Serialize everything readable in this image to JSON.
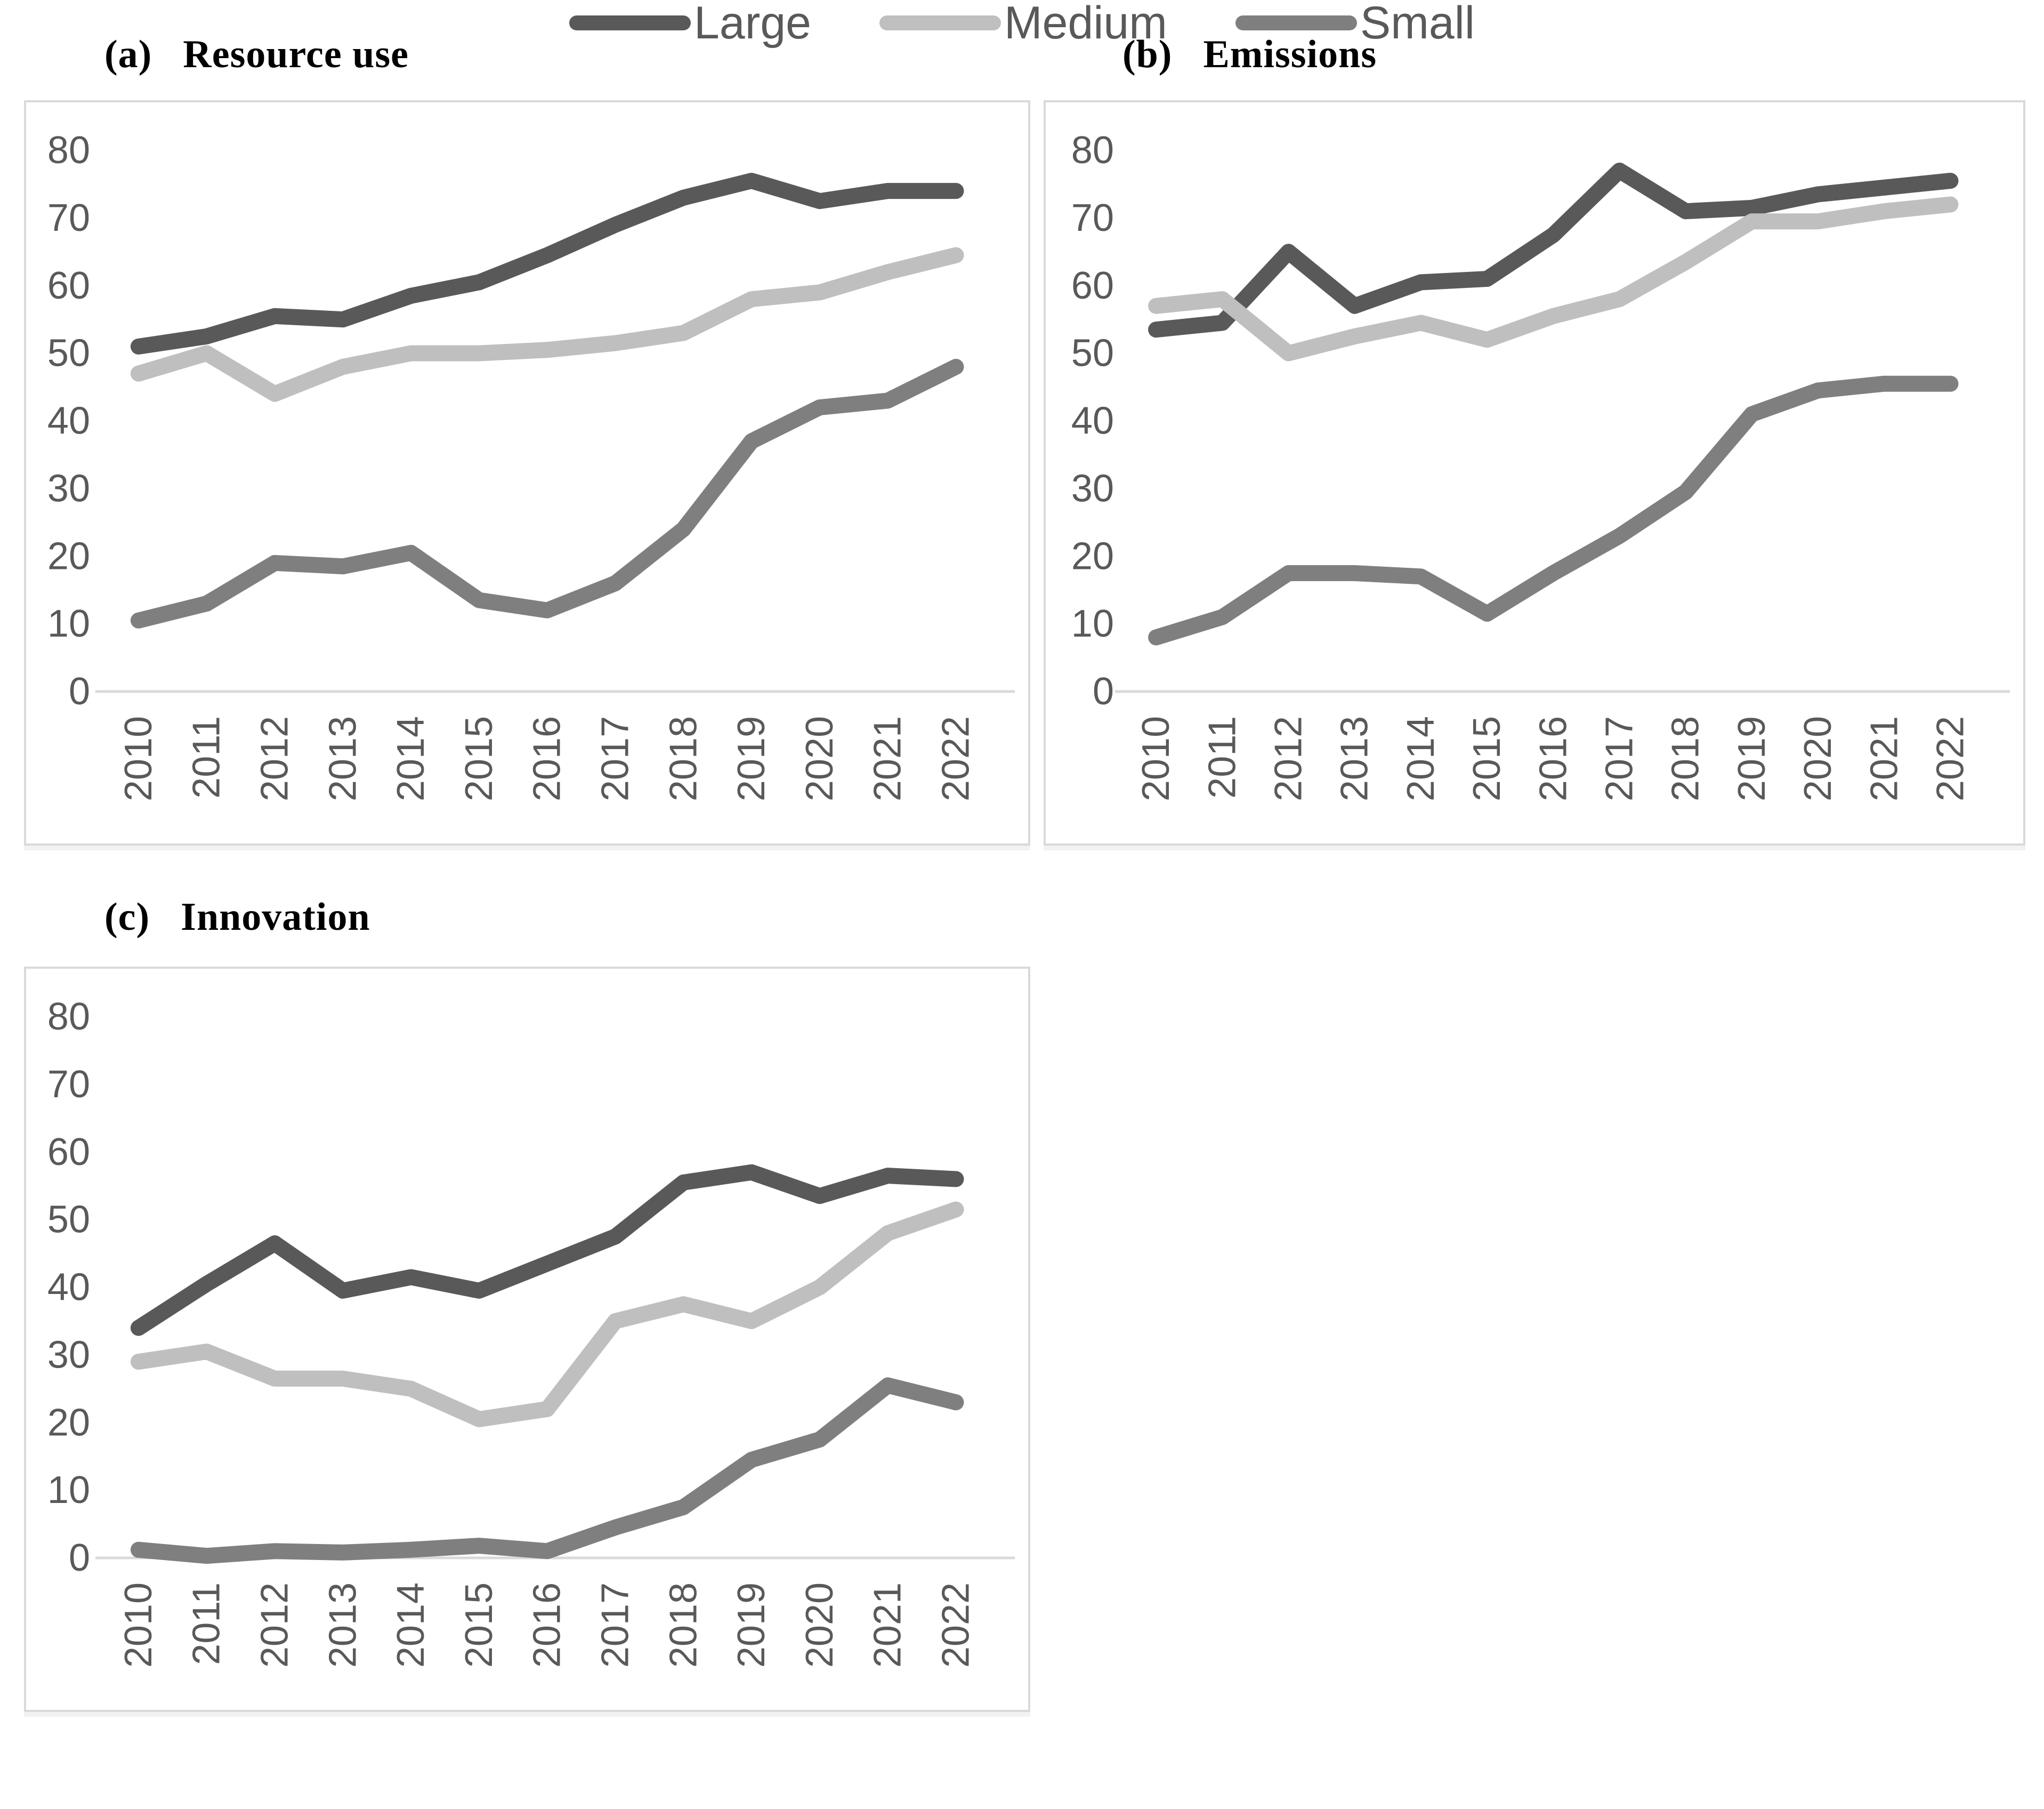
{
  "chart_data": [
    {
      "id": "a",
      "index_label": "(a)",
      "title": "Resource use",
      "type": "line",
      "x": [
        2010,
        2011,
        2012,
        2013,
        2014,
        2015,
        2016,
        2017,
        2018,
        2019,
        2020,
        2021,
        2022
      ],
      "ylim": [
        0,
        80
      ],
      "yticks": [
        0,
        10,
        20,
        30,
        40,
        50,
        60,
        70,
        80
      ],
      "grid": false,
      "series": [
        {
          "name": "Large",
          "color": "#595959",
          "values": [
            51,
            52.5,
            55.5,
            55,
            58.5,
            60.5,
            64.5,
            69,
            73,
            75.5,
            72.5,
            74,
            74
          ]
        },
        {
          "name": "Medium",
          "color": "#bfbfbf",
          "values": [
            47,
            50,
            44,
            48,
            50,
            50,
            50.5,
            51.5,
            53,
            58,
            59,
            62,
            64.5
          ]
        },
        {
          "name": "Small",
          "color": "#7f7f7f",
          "values": [
            10.5,
            13,
            19,
            18.5,
            20.5,
            13.5,
            12,
            16,
            24,
            37,
            42,
            43,
            48
          ]
        }
      ]
    },
    {
      "id": "b",
      "index_label": "(b)",
      "title": "Emissions",
      "type": "line",
      "x": [
        2010,
        2011,
        2012,
        2013,
        2014,
        2015,
        2016,
        2017,
        2018,
        2019,
        2020,
        2021,
        2022
      ],
      "ylim": [
        0,
        80
      ],
      "yticks": [
        0,
        10,
        20,
        30,
        40,
        50,
        60,
        70,
        80
      ],
      "grid": false,
      "series": [
        {
          "name": "Large",
          "color": "#595959",
          "values": [
            53.5,
            54.5,
            65,
            57,
            60.5,
            61,
            67.5,
            77,
            71,
            71.5,
            73.5,
            74.5,
            75.5
          ]
        },
        {
          "name": "Medium",
          "color": "#bfbfbf",
          "values": [
            57,
            58,
            50,
            52.5,
            54.5,
            52,
            55.5,
            58,
            63.5,
            69.5,
            69.5,
            71,
            72
          ]
        },
        {
          "name": "Small",
          "color": "#7f7f7f",
          "values": [
            8,
            11,
            17.5,
            17.5,
            17,
            11.5,
            17.5,
            23,
            29.5,
            41,
            44.5,
            45.5,
            45.5
          ]
        }
      ]
    },
    {
      "id": "c",
      "index_label": "(c)",
      "title": "Innovation",
      "type": "line",
      "x": [
        2010,
        2011,
        2012,
        2013,
        2014,
        2015,
        2016,
        2017,
        2018,
        2019,
        2020,
        2021,
        2022
      ],
      "ylim": [
        0,
        80
      ],
      "yticks": [
        0,
        10,
        20,
        30,
        40,
        50,
        60,
        70,
        80
      ],
      "grid": false,
      "series": [
        {
          "name": "Large",
          "color": "#595959",
          "values": [
            34,
            40.5,
            46.5,
            39.5,
            41.5,
            39.5,
            43.5,
            47.5,
            55.5,
            57,
            53.5,
            56.5,
            56
          ]
        },
        {
          "name": "Medium",
          "color": "#bfbfbf",
          "values": [
            29,
            30.5,
            26.5,
            26.5,
            25,
            20.5,
            22,
            35,
            37.5,
            35,
            40,
            48,
            51.5
          ]
        },
        {
          "name": "Small",
          "color": "#7f7f7f",
          "values": [
            1.2,
            0.3,
            1,
            0.8,
            1.2,
            1.8,
            1,
            4.5,
            7.5,
            14.5,
            17.5,
            25.5,
            23
          ]
        }
      ]
    }
  ],
  "legend": {
    "position": "bottom-center",
    "items": [
      {
        "label": "Large",
        "color": "#595959"
      },
      {
        "label": "Medium",
        "color": "#bfbfbf"
      },
      {
        "label": "Small",
        "color": "#7f7f7f"
      }
    ]
  },
  "style_colors": {
    "axis_line": "#d9d9d9",
    "panel_border": "#d9d9d9",
    "tick_text": "#595959",
    "title_text": "#000000"
  }
}
